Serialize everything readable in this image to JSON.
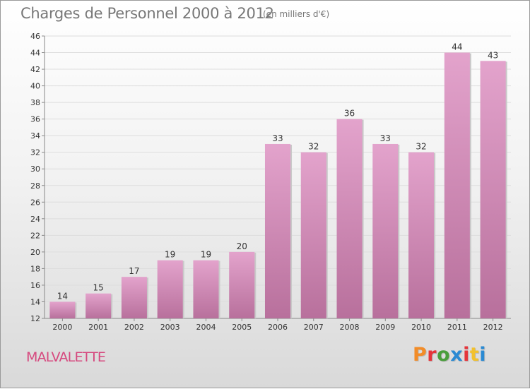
{
  "header": {
    "title": "Charges de Personnel 2000 à 2012",
    "subtitle": "(en milliers d'€)"
  },
  "footer": {
    "commune": "MALVALETTE",
    "logo_text": "Proxiti",
    "logo_colors": [
      "#f28c28",
      "#e5353b",
      "#4a9e3c",
      "#2a8ad3",
      "#e5353b",
      "#f2c12e",
      "#2a8ad3"
    ]
  },
  "colors": {
    "bar_top": "#e3a3cc",
    "bar_bottom": "#b8709c",
    "axis_text": "#333333",
    "grid": "#dddddd"
  },
  "chart_data": {
    "type": "bar",
    "categories": [
      "2000",
      "2001",
      "2002",
      "2003",
      "2004",
      "2005",
      "2006",
      "2007",
      "2008",
      "2009",
      "2010",
      "2011",
      "2012"
    ],
    "values": [
      14,
      15,
      17,
      19,
      19,
      20,
      33,
      32,
      36,
      33,
      32,
      44,
      43
    ],
    "title": "Charges de Personnel 2000 à 2012",
    "ylim": [
      12,
      46
    ],
    "yticks": [
      12,
      14,
      16,
      18,
      20,
      22,
      24,
      26,
      28,
      30,
      32,
      34,
      36,
      38,
      40,
      42,
      44,
      46
    ],
    "grid": true,
    "data_labels": true
  }
}
